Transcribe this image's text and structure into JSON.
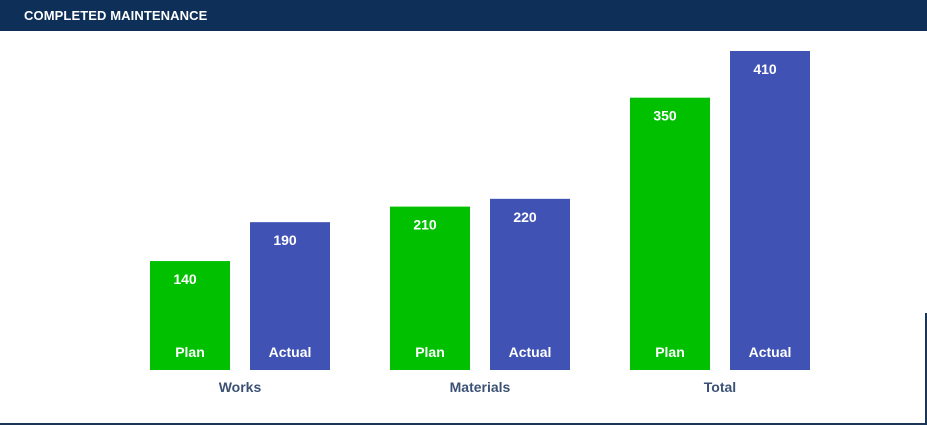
{
  "header": {
    "title": "COMPLETED MAINTENANCE"
  },
  "chart_data": {
    "type": "bar",
    "categories": [
      "Works",
      "Materials",
      "Total"
    ],
    "series": [
      {
        "name": "Plan",
        "values": [
          140,
          210,
          350
        ],
        "color": "#00c000"
      },
      {
        "name": "Actual",
        "values": [
          190,
          220,
          410
        ],
        "color": "#4152b5"
      }
    ],
    "title": "",
    "xlabel": "",
    "ylabel": "",
    "ylim": [
      0,
      410
    ],
    "grid": false,
    "legend": "none",
    "bar_label_color": "#ffffff",
    "category_label_color": "#3c5275"
  }
}
